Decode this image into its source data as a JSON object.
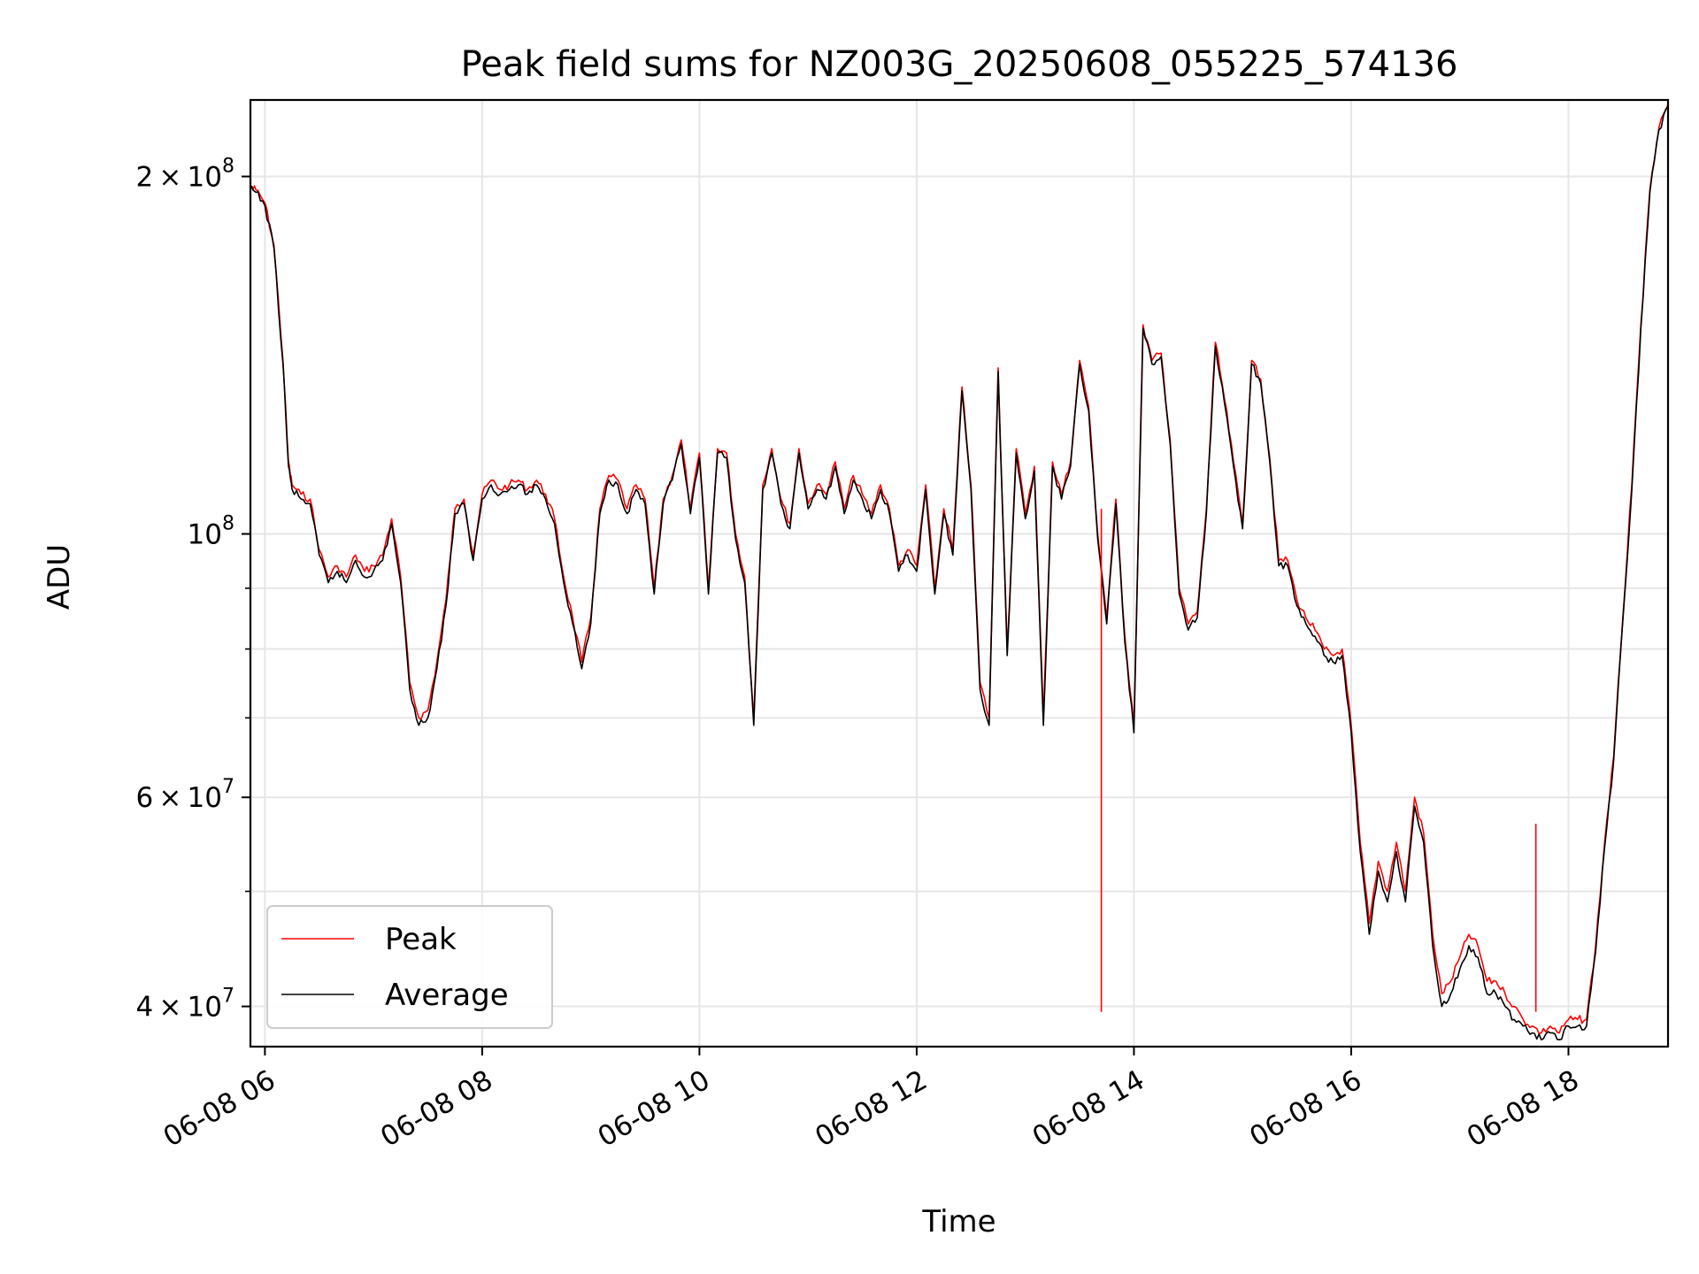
{
  "chart_data": {
    "type": "line",
    "title": "Peak field sums for NZ003G_20250608_055225_574136",
    "xlabel": "Time",
    "ylabel": "ADU",
    "yscale": "log",
    "xlim": [
      "06-08 05:52",
      "06-08 18:55"
    ],
    "ylim": [
      37000000,
      232000000
    ],
    "grid": true,
    "legend_position": "lower-left",
    "x_ticks": [
      "06-08 06",
      "06-08 08",
      "06-08 10",
      "06-08 12",
      "06-08 14",
      "06-08 16",
      "06-08 18"
    ],
    "y_ticks": [
      {
        "value": 40000000,
        "mantissa": "4",
        "exponent": "7"
      },
      {
        "value": 60000000,
        "mantissa": "6",
        "exponent": "7"
      },
      {
        "value": 100000000,
        "mantissa": "",
        "exponent": "8"
      },
      {
        "value": 200000000,
        "mantissa": "2",
        "exponent": "8"
      }
    ],
    "y_minor_ticks": [
      50000000,
      70000000,
      80000000,
      90000000
    ],
    "x": [
      "05:52",
      "05:55",
      "06:00",
      "06:05",
      "06:10",
      "06:13",
      "06:15",
      "06:20",
      "06:25",
      "06:30",
      "06:35",
      "06:40",
      "06:45",
      "06:50",
      "06:55",
      "07:00",
      "07:05",
      "07:10",
      "07:15",
      "07:20",
      "07:25",
      "07:30",
      "07:35",
      "07:40",
      "07:45",
      "07:50",
      "07:55",
      "08:00",
      "08:05",
      "08:10",
      "08:15",
      "08:20",
      "08:25",
      "08:30",
      "08:35",
      "08:40",
      "08:45",
      "08:50",
      "08:55",
      "09:00",
      "09:05",
      "09:10",
      "09:15",
      "09:20",
      "09:25",
      "09:30",
      "09:35",
      "09:40",
      "09:45",
      "09:50",
      "09:55",
      "10:00",
      "10:05",
      "10:10",
      "10:15",
      "10:20",
      "10:25",
      "10:30",
      "10:35",
      "10:40",
      "10:45",
      "10:50",
      "10:55",
      "11:00",
      "11:05",
      "11:10",
      "11:15",
      "11:20",
      "11:25",
      "11:30",
      "11:35",
      "11:40",
      "11:45",
      "11:50",
      "11:55",
      "12:00",
      "12:05",
      "12:10",
      "12:15",
      "12:20",
      "12:25",
      "12:30",
      "12:35",
      "12:40",
      "12:45",
      "12:50",
      "12:55",
      "13:00",
      "13:05",
      "13:10",
      "13:15",
      "13:20",
      "13:25",
      "13:30",
      "13:35",
      "13:40",
      "13:45",
      "13:50",
      "13:55",
      "14:00",
      "14:05",
      "14:10",
      "14:15",
      "14:20",
      "14:25",
      "14:30",
      "14:35",
      "14:40",
      "14:45",
      "14:50",
      "14:55",
      "15:00",
      "15:05",
      "15:10",
      "15:15",
      "15:20",
      "15:25",
      "15:30",
      "15:35",
      "15:40",
      "15:45",
      "15:50",
      "15:55",
      "16:00",
      "16:05",
      "16:10",
      "16:15",
      "16:20",
      "16:25",
      "16:30",
      "16:35",
      "16:40",
      "16:45",
      "16:50",
      "16:55",
      "17:00",
      "17:05",
      "17:10",
      "17:15",
      "17:20",
      "17:25",
      "17:30",
      "17:35",
      "17:40",
      "17:45",
      "17:50",
      "17:55",
      "18:00",
      "18:05",
      "18:10",
      "18:15",
      "18:20",
      "18:25",
      "18:30",
      "18:35",
      "18:40",
      "18:45",
      "18:50",
      "18:55"
    ],
    "series": [
      {
        "name": "Peak",
        "color": "#ff0000",
        "values": [
          196000000,
          195000000,
          190000000,
          175000000,
          140000000,
          115000000,
          110000000,
          108000000,
          107000000,
          97000000,
          92000000,
          94000000,
          92000000,
          96000000,
          93000000,
          94000000,
          96000000,
          103000000,
          92000000,
          75000000,
          70000000,
          71000000,
          78000000,
          88000000,
          105000000,
          107000000,
          96000000,
          108000000,
          111000000,
          109000000,
          110000000,
          111000000,
          109000000,
          111000000,
          108000000,
          103000000,
          92000000,
          85000000,
          78000000,
          85000000,
          105000000,
          112000000,
          111000000,
          105000000,
          110000000,
          107000000,
          90000000,
          107000000,
          112000000,
          120000000,
          105000000,
          117000000,
          90000000,
          118000000,
          117000000,
          100000000,
          92000000,
          70000000,
          110000000,
          118000000,
          107000000,
          102000000,
          118000000,
          106000000,
          110000000,
          108000000,
          115000000,
          105000000,
          112000000,
          108000000,
          104000000,
          110000000,
          105000000,
          94000000,
          97000000,
          94000000,
          110000000,
          90000000,
          105000000,
          97000000,
          133000000,
          110000000,
          75000000,
          70000000,
          138000000,
          80000000,
          118000000,
          104000000,
          114000000,
          70000000,
          115000000,
          108000000,
          115000000,
          140000000,
          128000000,
          100000000,
          85000000,
          107000000,
          82000000,
          69000000,
          150000000,
          140000000,
          142000000,
          120000000,
          90000000,
          84000000,
          86000000,
          105000000,
          145000000,
          130000000,
          115000000,
          102000000,
          140000000,
          135000000,
          116000000,
          95000000,
          95000000,
          88000000,
          85000000,
          83000000,
          80000000,
          79000000,
          80000000,
          69000000,
          55000000,
          47000000,
          53000000,
          50000000,
          55000000,
          50000000,
          60000000,
          56000000,
          46000000,
          41000000,
          42000000,
          44000000,
          46000000,
          45000000,
          42000000,
          42000000,
          41000000,
          40000000,
          39000000,
          38500000,
          38000000,
          38500000,
          38000000,
          39000000,
          39000000,
          39000000,
          45000000,
          55000000,
          65000000,
          85000000,
          110000000,
          150000000,
          195000000,
          220000000,
          230000000
        ]
      },
      {
        "name": "Average",
        "color": "#000000",
        "values": [
          195000000,
          194000000,
          189000000,
          174000000,
          139000000,
          114000000,
          109000000,
          107000000,
          106000000,
          96000000,
          91000000,
          93000000,
          91000000,
          95000000,
          92000000,
          93000000,
          95000000,
          102000000,
          91000000,
          74000000,
          69000000,
          70000000,
          77000000,
          87000000,
          104000000,
          106000000,
          95000000,
          107000000,
          110000000,
          108000000,
          109000000,
          110000000,
          108000000,
          110000000,
          107000000,
          102000000,
          91000000,
          84000000,
          77000000,
          84000000,
          104000000,
          111000000,
          110000000,
          104000000,
          109000000,
          106000000,
          89000000,
          106000000,
          111000000,
          119000000,
          104000000,
          116000000,
          89000000,
          117000000,
          116000000,
          99000000,
          91000000,
          69000000,
          109000000,
          117000000,
          106000000,
          101000000,
          117000000,
          105000000,
          109000000,
          107000000,
          114000000,
          104000000,
          111000000,
          107000000,
          103000000,
          109000000,
          104000000,
          93000000,
          96000000,
          93000000,
          109000000,
          89000000,
          104000000,
          96000000,
          132000000,
          109000000,
          74000000,
          69000000,
          137000000,
          79000000,
          117000000,
          103000000,
          113000000,
          69000000,
          114000000,
          107000000,
          114000000,
          139000000,
          127000000,
          99000000,
          84000000,
          106000000,
          81000000,
          68000000,
          149000000,
          139000000,
          141000000,
          119000000,
          89000000,
          83000000,
          85000000,
          104000000,
          144000000,
          129000000,
          114000000,
          101000000,
          139000000,
          134000000,
          115000000,
          94000000,
          94000000,
          87000000,
          84000000,
          82000000,
          79000000,
          78000000,
          79000000,
          68000000,
          54000000,
          46000000,
          52000000,
          49000000,
          54000000,
          49000000,
          59000000,
          55000000,
          45000000,
          40000000,
          41000000,
          43000000,
          45000000,
          44000000,
          41000000,
          41000000,
          40000000,
          39000000,
          38500000,
          38000000,
          37500000,
          38000000,
          37500000,
          38500000,
          38500000,
          38500000,
          44500000,
          54500000,
          64500000,
          84500000,
          109000000,
          149000000,
          194000000,
          219000000,
          229000000
        ]
      }
    ],
    "annotations": [
      {
        "series": "Peak",
        "x": "17:42",
        "value": 57000000,
        "kind": "spike"
      },
      {
        "series": "Peak",
        "x": "13:42",
        "value": 105000000,
        "kind": "spike"
      }
    ]
  }
}
